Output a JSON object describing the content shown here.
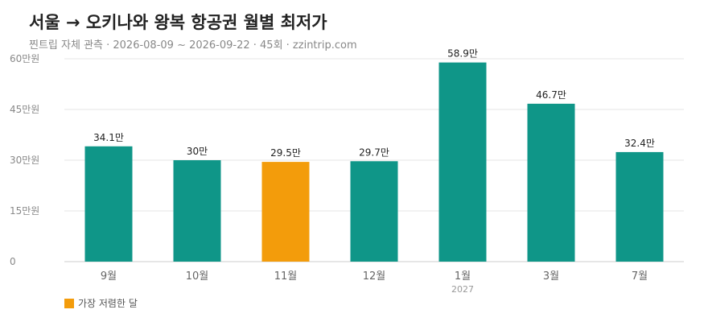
{
  "header": {
    "title": "서울 → 오키나와 왕복 항공권 월별 최저가",
    "subtitle": "찐트립 자체 관측 · 2026-08-09 ~ 2026-09-22 · 45회 · zzintrip.com"
  },
  "legend": {
    "cheapest_label": "가장 저렴한 달"
  },
  "colors": {
    "bar": "#0f9688",
    "cheapest": "#f39c0b",
    "grid": "#e6e6e6",
    "axis_text": "#888888",
    "label_text": "#222222"
  },
  "chart_data": {
    "type": "bar",
    "title": "서울 → 오키나와 왕복 항공권 월별 최저가",
    "unit": "만원",
    "categories": [
      "9월",
      "10월",
      "11월",
      "12월",
      "1월",
      "3월",
      "7월"
    ],
    "category_sublabels": [
      "",
      "",
      "",
      "",
      "2027",
      "",
      ""
    ],
    "values": [
      34.1,
      30,
      29.5,
      29.7,
      58.9,
      46.7,
      32.4
    ],
    "value_labels": [
      "34.1만",
      "30만",
      "29.5만",
      "29.7만",
      "58.9만",
      "46.7만",
      "32.4만"
    ],
    "highlight_index": 2,
    "yticks": [
      0,
      15,
      30,
      45,
      60
    ],
    "ytick_labels": [
      "0",
      "15만원",
      "30만원",
      "45만원",
      "60만원"
    ],
    "ylim": [
      0,
      60
    ],
    "grid": true,
    "legend_position": "bottom-left"
  }
}
